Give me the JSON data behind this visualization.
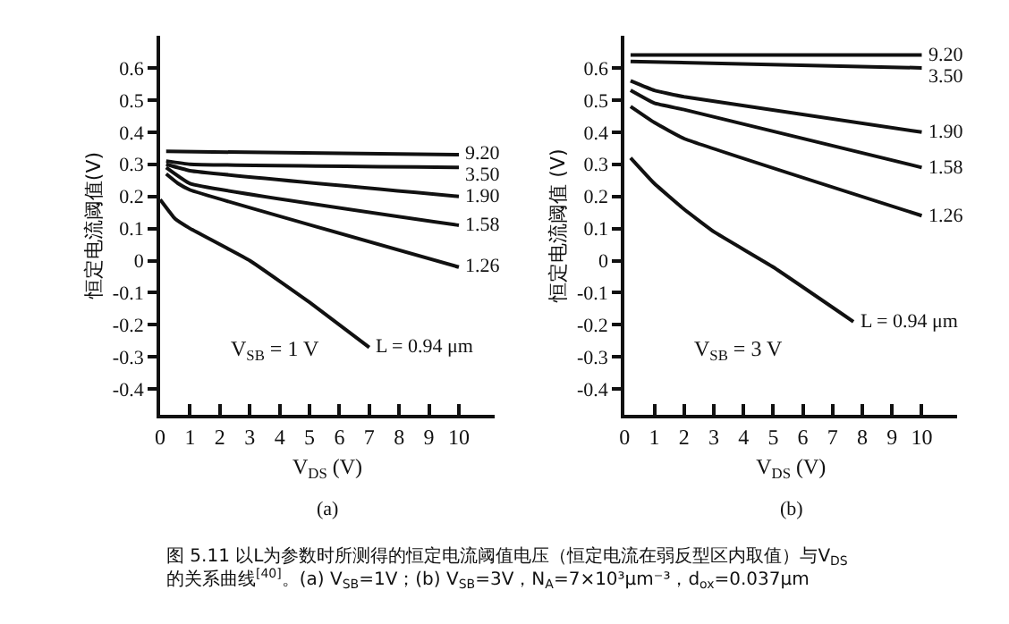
{
  "chart_data": [
    {
      "type": "line",
      "xlabel": "V$_{DS}$ (V)",
      "ylabel": "恒定电流阈值(V)",
      "xlim": [
        0,
        11.2
      ],
      "ylim": [
        -0.48,
        0.7
      ],
      "xticks": [
        0,
        1,
        2,
        3,
        4,
        5,
        6,
        7,
        8,
        9,
        10
      ],
      "yticks": [
        -0.4,
        -0.3,
        -0.2,
        -0.1,
        0,
        0.1,
        0.2,
        0.3,
        0.4,
        0.5,
        0.6
      ],
      "line_style": "solid",
      "series": [
        {
          "name": "9.20",
          "color": "#111111",
          "x": [
            0.2,
            10
          ],
          "values": [
            0.34,
            0.33
          ]
        },
        {
          "name": "3.50",
          "color": "#111111",
          "x": [
            0.2,
            1,
            10
          ],
          "values": [
            0.31,
            0.3,
            0.29
          ]
        },
        {
          "name": "1.90",
          "color": "#111111",
          "x": [
            0.2,
            1,
            10
          ],
          "values": [
            0.3,
            0.28,
            0.2
          ]
        },
        {
          "name": "1.58",
          "color": "#111111",
          "x": [
            0.2,
            1,
            10
          ],
          "values": [
            0.29,
            0.24,
            0.11
          ]
        },
        {
          "name": "1.26",
          "color": "#111111",
          "x": [
            0.2,
            0.6,
            1,
            10
          ],
          "values": [
            0.27,
            0.24,
            0.22,
            -0.02
          ]
        },
        {
          "name": "L = 0.94 μm",
          "color": "#111111",
          "x": [
            0,
            0.5,
            1,
            3,
            5,
            7
          ],
          "values": [
            0.19,
            0.13,
            0.1,
            0.0,
            -0.13,
            -0.27
          ]
        }
      ],
      "annotations": [
        "V$_{SB}$ = 1 V",
        "(a)",
        "图 5.11 以L为参数时所测得的恒定电流阈值电压（恒定电流在弱反型区内取值）与V$_{DS}$\n的关系曲线$^{[40]}$。(a) V$_{SB}$=1V；(b) V$_{SB}$=3V，N$_{A}$=7×10³μm⁻³，d$_{ox}$=0.037μm"
      ]
    },
    {
      "type": "line",
      "xlabel": "V$_{DS}$ (V)",
      "ylabel": "恒定电流阈值 (V)",
      "xlim": [
        0,
        11.2
      ],
      "ylim": [
        -0.48,
        0.7
      ],
      "xticks": [
        0,
        1,
        2,
        3,
        4,
        5,
        6,
        7,
        8,
        9,
        10
      ],
      "yticks": [
        -0.4,
        -0.3,
        -0.2,
        -0.1,
        0,
        0.1,
        0.2,
        0.3,
        0.4,
        0.5,
        0.6
      ],
      "line_style": "solid",
      "series": [
        {
          "name": "9.20",
          "color": "#111111",
          "x": [
            0.2,
            10
          ],
          "values": [
            0.64,
            0.64
          ]
        },
        {
          "name": "3.50",
          "color": "#111111",
          "x": [
            0.2,
            10
          ],
          "values": [
            0.62,
            0.6
          ]
        },
        {
          "name": "1.90",
          "color": "#111111",
          "x": [
            0.2,
            1,
            2,
            10
          ],
          "values": [
            0.56,
            0.53,
            0.51,
            0.4
          ]
        },
        {
          "name": "1.58",
          "color": "#111111",
          "x": [
            0.2,
            1,
            2,
            10
          ],
          "values": [
            0.53,
            0.49,
            0.47,
            0.29
          ]
        },
        {
          "name": "1.26",
          "color": "#111111",
          "x": [
            0.2,
            1,
            2,
            10
          ],
          "values": [
            0.48,
            0.43,
            0.38,
            0.14
          ]
        },
        {
          "name": "L = 0.94 μm",
          "color": "#111111",
          "x": [
            0.2,
            1,
            2,
            3,
            5,
            7.7
          ],
          "values": [
            0.32,
            0.24,
            0.16,
            0.09,
            -0.02,
            -0.19
          ]
        }
      ],
      "annotations": [
        "V$_{SB}$ = 3 V",
        "(b)"
      ]
    }
  ]
}
